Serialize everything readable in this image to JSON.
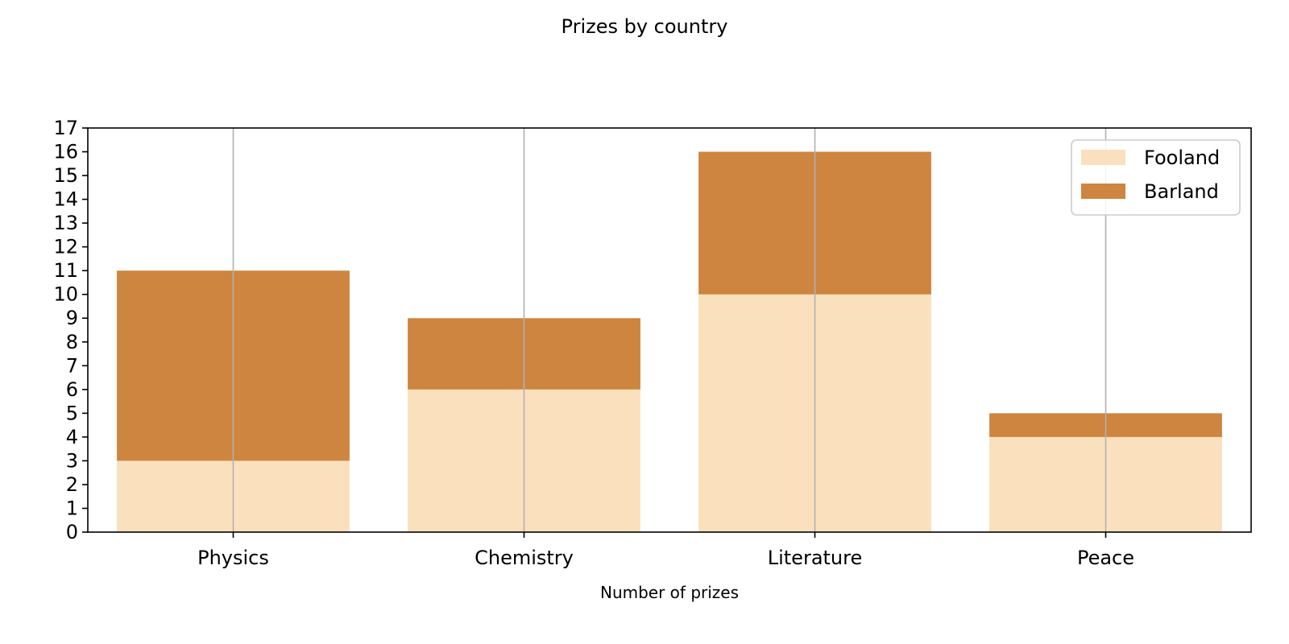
{
  "chart_data": {
    "type": "bar",
    "stacked": true,
    "title": "Prizes by country",
    "xlabel": "Number of prizes",
    "ylabel": "",
    "categories": [
      "Physics",
      "Chemistry",
      "Literature",
      "Peace"
    ],
    "series": [
      {
        "name": "Fooland",
        "values": [
          3,
          6,
          10,
          4
        ],
        "color": "#fbe0bd"
      },
      {
        "name": "Barland",
        "values": [
          8,
          3,
          6,
          1
        ],
        "color": "#cd853f"
      }
    ],
    "ylim": [
      0,
      17
    ],
    "yticks": [
      "0",
      "1",
      "2",
      "3",
      "4",
      "5",
      "6",
      "7",
      "8",
      "9",
      "10",
      "11",
      "12",
      "13",
      "14",
      "15",
      "16",
      "17"
    ],
    "grid": "vertical",
    "legend_position": "top-right"
  }
}
